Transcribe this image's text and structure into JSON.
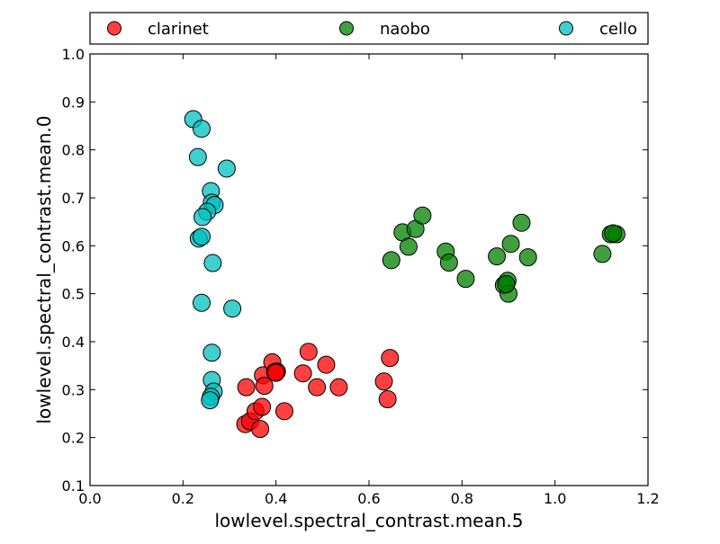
{
  "chart_data": {
    "type": "scatter",
    "xlabel": "lowlevel.spectral_contrast.mean.5",
    "ylabel": "lowlevel.spectral_contrast.mean.0",
    "xlim": [
      0.0,
      1.2
    ],
    "ylim": [
      0.1,
      1.0
    ],
    "x_ticks": [
      "0.0",
      "0.2",
      "0.4",
      "0.6",
      "0.8",
      "1.0",
      "1.2"
    ],
    "y_ticks": [
      "0.1",
      "0.2",
      "0.3",
      "0.4",
      "0.5",
      "0.6",
      "0.7",
      "0.8",
      "0.9",
      "1.0"
    ],
    "grid": false,
    "legend_position": "top, above plot, horizontal",
    "series": [
      {
        "name": "clarinet",
        "color": "#ff0000",
        "points": [
          [
            0.334,
            0.228
          ],
          [
            0.344,
            0.234
          ],
          [
            0.356,
            0.255
          ],
          [
            0.366,
            0.218
          ],
          [
            0.37,
            0.264
          ],
          [
            0.372,
            0.33
          ],
          [
            0.375,
            0.308
          ],
          [
            0.336,
            0.305
          ],
          [
            0.392,
            0.357
          ],
          [
            0.402,
            0.338
          ],
          [
            0.398,
            0.337
          ],
          [
            0.418,
            0.255
          ],
          [
            0.458,
            0.334
          ],
          [
            0.47,
            0.379
          ],
          [
            0.488,
            0.305
          ],
          [
            0.508,
            0.352
          ],
          [
            0.535,
            0.305
          ],
          [
            0.632,
            0.317
          ],
          [
            0.64,
            0.28
          ],
          [
            0.645,
            0.366
          ],
          [
            0.4,
            0.335
          ]
        ]
      },
      {
        "name": "naobo",
        "color": "#008000",
        "points": [
          [
            0.648,
            0.57
          ],
          [
            0.672,
            0.628
          ],
          [
            0.685,
            0.598
          ],
          [
            0.7,
            0.635
          ],
          [
            0.715,
            0.663
          ],
          [
            0.765,
            0.588
          ],
          [
            0.772,
            0.565
          ],
          [
            0.808,
            0.531
          ],
          [
            0.875,
            0.578
          ],
          [
            0.89,
            0.518
          ],
          [
            0.898,
            0.527
          ],
          [
            0.9,
            0.5
          ],
          [
            0.905,
            0.604
          ],
          [
            0.928,
            0.648
          ],
          [
            0.942,
            0.576
          ],
          [
            1.102,
            0.583
          ],
          [
            1.12,
            0.624
          ],
          [
            1.132,
            0.624
          ],
          [
            1.125,
            0.626
          ],
          [
            0.895,
            0.52
          ]
        ]
      },
      {
        "name": "cello",
        "color": "#00bfbf",
        "points": [
          [
            0.222,
            0.864
          ],
          [
            0.24,
            0.844
          ],
          [
            0.232,
            0.785
          ],
          [
            0.294,
            0.761
          ],
          [
            0.26,
            0.714
          ],
          [
            0.262,
            0.69
          ],
          [
            0.268,
            0.685
          ],
          [
            0.252,
            0.671
          ],
          [
            0.242,
            0.66
          ],
          [
            0.234,
            0.615
          ],
          [
            0.24,
            0.619
          ],
          [
            0.264,
            0.564
          ],
          [
            0.24,
            0.481
          ],
          [
            0.306,
            0.469
          ],
          [
            0.262,
            0.377
          ],
          [
            0.262,
            0.32
          ],
          [
            0.266,
            0.296
          ],
          [
            0.26,
            0.285
          ],
          [
            0.258,
            0.278
          ]
        ]
      }
    ]
  }
}
